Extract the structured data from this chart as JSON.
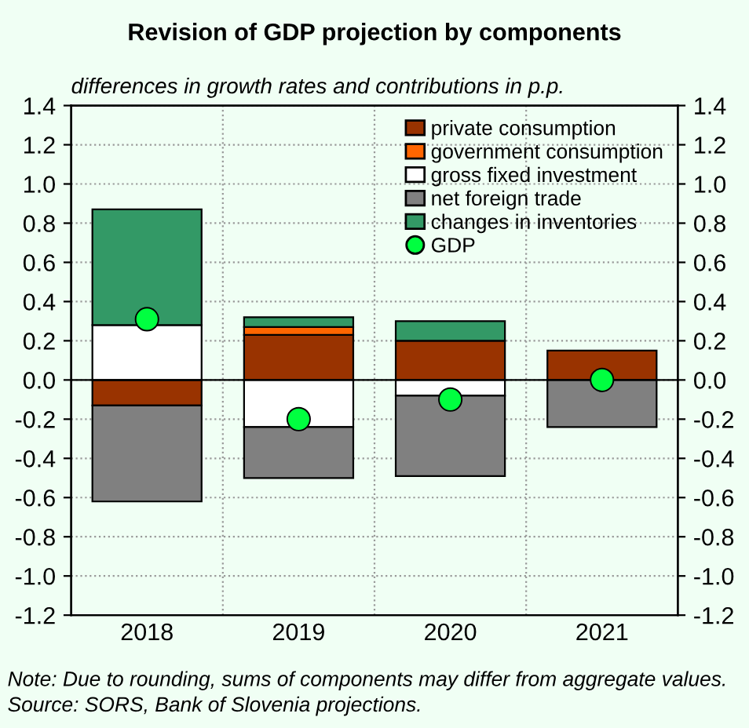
{
  "chart_data": {
    "type": "bar",
    "title": "Revision of GDP projection by components",
    "ylabel": "differences in growth rates and contributions in p.p.",
    "categories": [
      "2018",
      "2019",
      "2020",
      "2021"
    ],
    "stacked": true,
    "series": [
      {
        "name": "private consumption",
        "color": "#993300",
        "values": [
          -0.13,
          0.23,
          0.2,
          0.15
        ]
      },
      {
        "name": "government consumption",
        "color": "#ff6600",
        "values": [
          null,
          0.04,
          null,
          null
        ]
      },
      {
        "name": "gross fixed investment",
        "color": "#ffffff",
        "values": [
          0.28,
          -0.24,
          -0.08,
          null
        ]
      },
      {
        "name": "net foreign trade",
        "color": "#808080",
        "values": [
          -0.49,
          -0.26,
          -0.41,
          -0.24
        ]
      },
      {
        "name": "changes in inventories",
        "color": "#339966",
        "values": [
          0.59,
          0.05,
          0.1,
          null
        ]
      },
      {
        "name": "GDP",
        "type": "scatter",
        "color": "#00ff40",
        "values": [
          0.31,
          -0.2,
          -0.1,
          0.0
        ]
      }
    ],
    "ylim": [
      -1.2,
      1.4
    ],
    "yticks": [
      -1.2,
      {
        "value": -1,
        "label": "-1.0"
      },
      -0.8,
      -0.6,
      -0.4,
      -0.2,
      {
        "value": 0,
        "label": "0.0"
      },
      0.2,
      0.4,
      0.6,
      0.8,
      {
        "value": 1,
        "label": "1.0"
      },
      1.2,
      1.4
    ],
    "y2lim": [
      -1.2,
      1.4
    ],
    "y2ticks": [
      -1.2,
      {
        "value": -1,
        "label": "-1.0"
      },
      -0.8,
      -0.6,
      -0.4,
      -0.2,
      {
        "value": 0,
        "label": "0.0"
      },
      0.2,
      0.4,
      0.6,
      0.8,
      {
        "value": 1,
        "label": "1.0"
      },
      1.2,
      1.4
    ],
    "grid": "y",
    "legend": "top right",
    "marker": "circle",
    "annotations": [
      "Note: Due to rounding, sums of components may differ from aggregate values.",
      "Source: SORS, Bank of Slovenia projections."
    ]
  }
}
